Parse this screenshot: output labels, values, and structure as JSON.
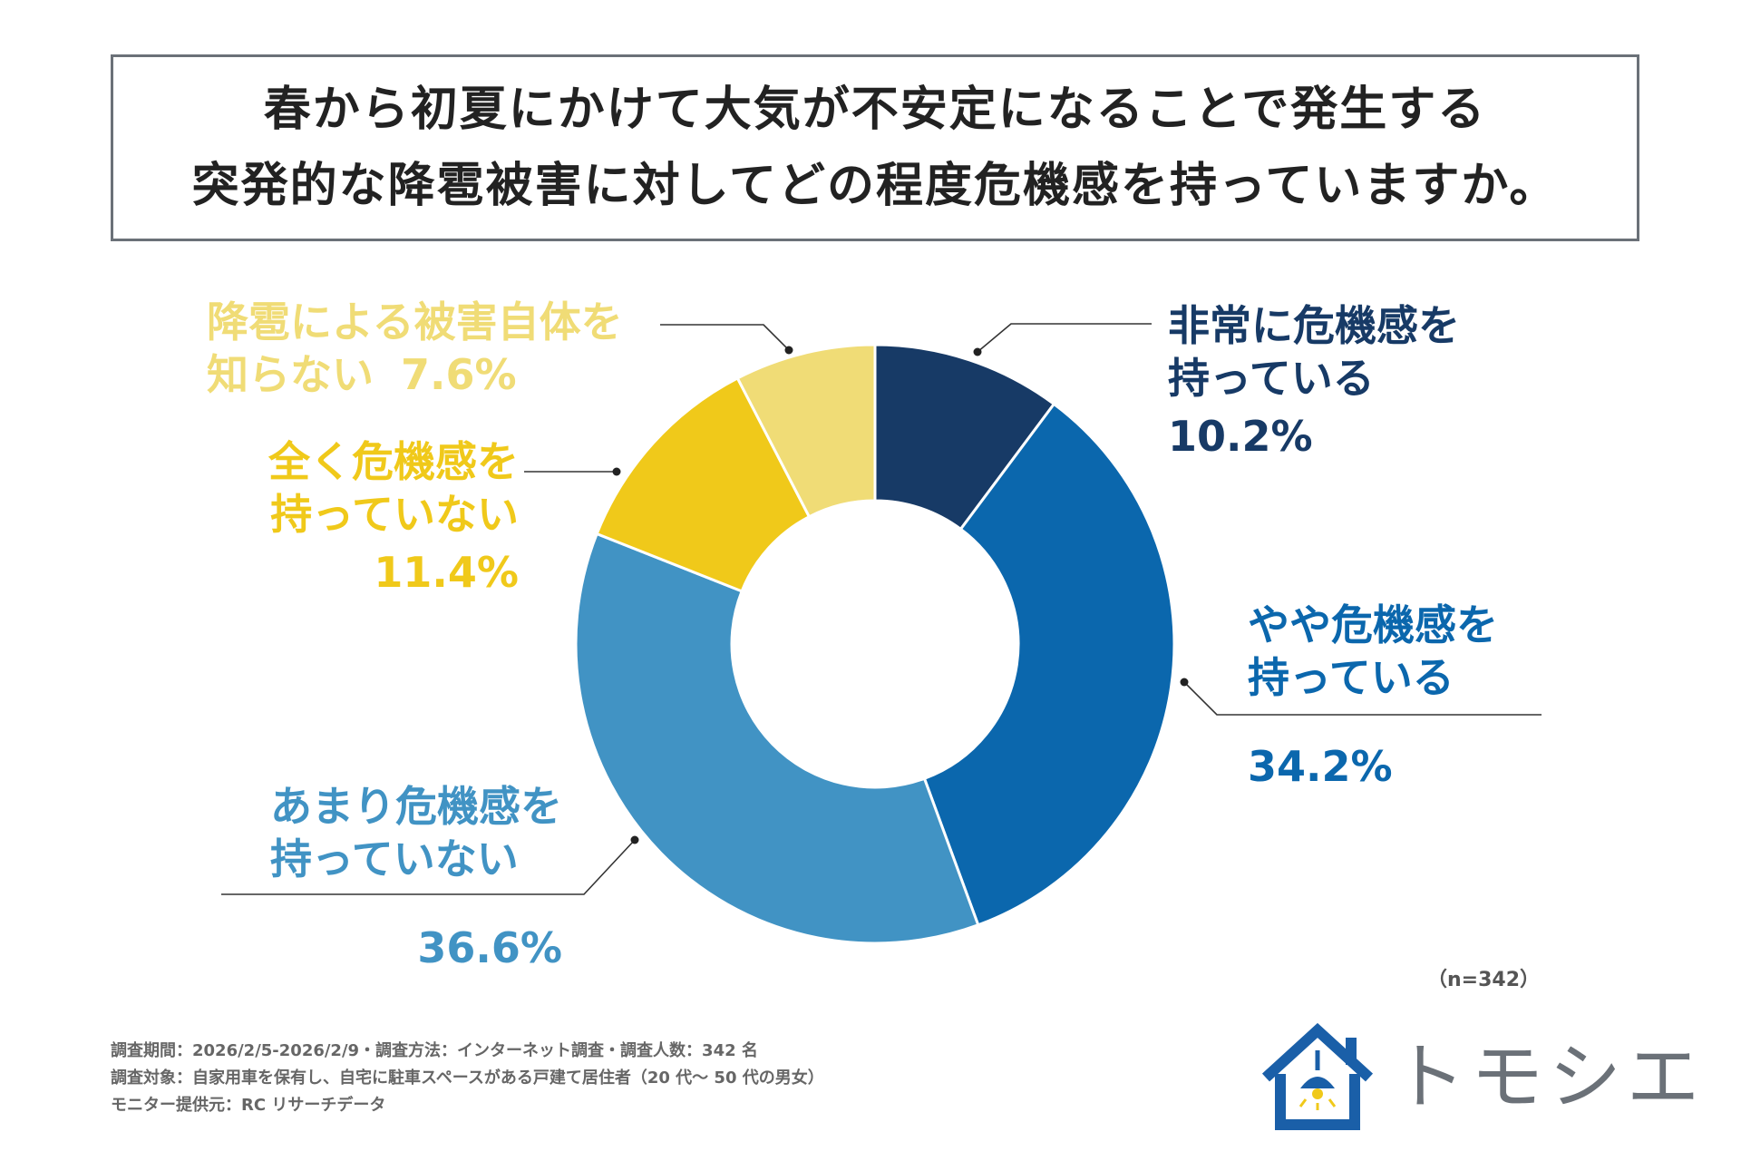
{
  "title": {
    "line1": "春から初夏にかけて大気が不安定になることで発生する",
    "line2": "突発的な降雹被害に対してどの程度危機感を持っていますか。"
  },
  "chart_data": {
    "type": "pie",
    "style": "donut",
    "title": "春から初夏にかけて大気が不安定になることで発生する突発的な降雹被害に対してどの程度危機感を持っていますか。",
    "categories": [
      "非常に危機感を持っている",
      "やや危機感を持っている",
      "あまり危機感を持っていない",
      "全く危機感を持っていない",
      "降雹による被害自体を知らない"
    ],
    "values": [
      10.2,
      34.2,
      36.6,
      11.4,
      7.6
    ],
    "unit": "%",
    "colors": [
      "#173a66",
      "#0b67ad",
      "#4193c4",
      "#f0c91a",
      "#f0dc76"
    ],
    "labels": [
      {
        "lines": [
          "非常に危機感を",
          "持っている"
        ],
        "pct": "10.2%",
        "color": "#173a66"
      },
      {
        "lines": [
          "やや危機感を",
          "持っている"
        ],
        "pct": "34.2%",
        "color": "#0b67ad"
      },
      {
        "lines": [
          "あまり危機感を",
          "持っていない"
        ],
        "pct": "36.6%",
        "color": "#4193c4"
      },
      {
        "lines": [
          "全く危機感を",
          "持っていない"
        ],
        "pct": "11.4%",
        "color": "#f0c91a"
      },
      {
        "lines": [
          "降雹による被害自体を",
          "知らない"
        ],
        "pct": "7.6%",
        "color": "#f0dc76"
      }
    ]
  },
  "sample_size": "（n=342）",
  "footnotes": [
    "調査期間：2026/2/5-2026/2/9・調査方法：インターネット調査・調査人数：342 名",
    "調査対象：自家用車を保有し、自宅に駐車スペースがある戸建て居住者（20 代～ 50 代の男女）",
    "モニター提供元：RC リサーチデータ"
  ],
  "brand": {
    "name": "トモシエ",
    "color": "#1a5fa8",
    "icon": "house-lamp-icon"
  }
}
